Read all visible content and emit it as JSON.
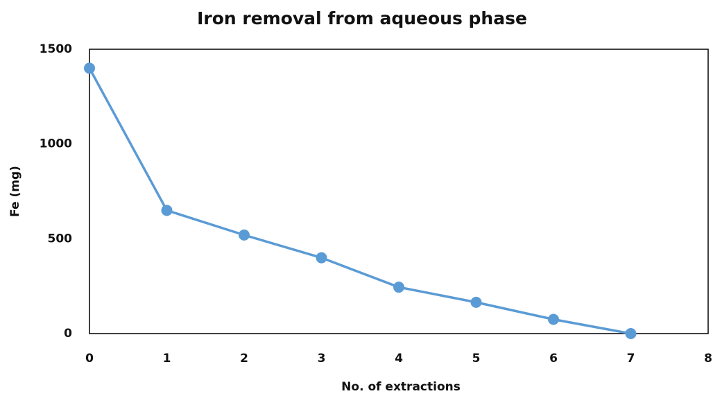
{
  "chart_data": {
    "type": "line",
    "title": "Iron removal from aqueous phase",
    "x_label": "No. of extractions",
    "y_label": "Fe (mg)",
    "x": [
      0,
      1,
      2,
      3,
      4,
      5,
      6,
      7
    ],
    "series": [
      {
        "name": "Fe",
        "color": "#5b9bd5",
        "values": [
          1400,
          650,
          520,
          400,
          245,
          165,
          75,
          0
        ]
      }
    ],
    "xlim": [
      0,
      8
    ],
    "xticks": [
      0,
      1,
      2,
      3,
      4,
      5,
      6,
      7,
      8
    ],
    "ylim": [
      0,
      1500
    ],
    "yticks": [
      0,
      500,
      1000,
      1500
    ],
    "grid": false
  }
}
